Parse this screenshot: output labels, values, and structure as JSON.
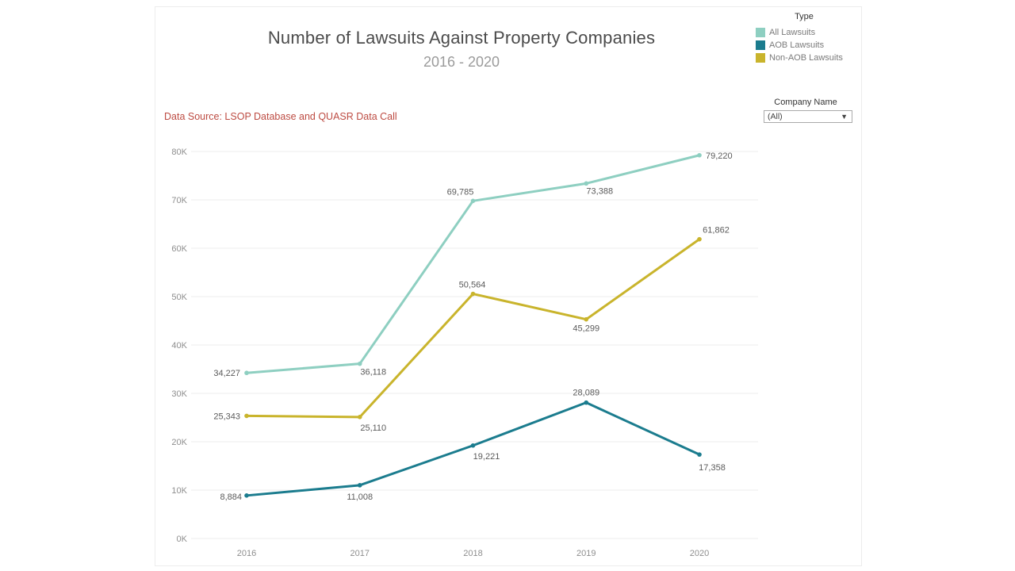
{
  "header": {
    "title": "Number of Lawsuits Against Property Companies",
    "subtitle": "2016 - 2020"
  },
  "data_source": {
    "text": "Data Source: LSOP Database and QUASR Data Call",
    "color": "#bd4b42"
  },
  "legend": {
    "title": "Type",
    "items": [
      {
        "label": "All Lawsuits",
        "color": "#8ecfc1"
      },
      {
        "label": "AOB Lawsuits",
        "color": "#1b7c8e"
      },
      {
        "label": "Non-AOB Lawsuits",
        "color": "#c9b42c"
      }
    ]
  },
  "filter": {
    "label": "Company Name",
    "value": "(All)",
    "icon": "caret-down-icon",
    "caret_glyph": "▼"
  },
  "chart_data": {
    "type": "line",
    "title": "Number of Lawsuits Against Property Companies",
    "subtitle": "2016 - 2020",
    "x": [
      2016,
      2017,
      2018,
      2019,
      2020
    ],
    "xlabel": "",
    "ylabel": "",
    "ylim": [
      0,
      80000
    ],
    "ytick_step": 10000,
    "ytick_labels": [
      "0K",
      "10K",
      "20K",
      "30K",
      "40K",
      "50K",
      "60K",
      "70K",
      "80K"
    ],
    "grid": true,
    "legend_position": "top-right",
    "axis_color": "#8e8e8e",
    "grid_color": "#ededed",
    "label_color": "#5a5a5a",
    "series": [
      {
        "name": "All Lawsuits",
        "color": "#8ecfc1",
        "values": [
          34227,
          36118,
          69785,
          73388,
          79220
        ],
        "labels": [
          "34,227",
          "36,118",
          "69,785",
          "73,388",
          "79,220"
        ],
        "label_offsets": [
          [
            -8,
            4,
            "end"
          ],
          [
            17,
            14,
            "middle"
          ],
          [
            -16,
            -8,
            "middle"
          ],
          [
            17,
            13,
            "middle"
          ],
          [
            8,
            4,
            "start"
          ]
        ]
      },
      {
        "name": "AOB Lawsuits",
        "color": "#1b7c8e",
        "values": [
          8884,
          11008,
          19221,
          28089,
          17358
        ],
        "labels": [
          "8,884",
          "11,008",
          "19,221",
          "28,089",
          "17,358"
        ],
        "label_offsets": [
          [
            -6,
            5,
            "end"
          ],
          [
            0,
            18,
            "middle"
          ],
          [
            17,
            17,
            "middle"
          ],
          [
            0,
            -9,
            "middle"
          ],
          [
            16,
            20,
            "middle"
          ]
        ]
      },
      {
        "name": "Non-AOB Lawsuits",
        "color": "#c9b42c",
        "values": [
          25343,
          25110,
          50564,
          45299,
          61862
        ],
        "labels": [
          "25,343",
          "25,110",
          "50,564",
          "45,299",
          "61,862"
        ],
        "label_offsets": [
          [
            -8,
            4,
            "end"
          ],
          [
            17,
            17,
            "middle"
          ],
          [
            -1,
            -8,
            "middle"
          ],
          [
            0,
            15,
            "middle"
          ],
          [
            21,
            -8,
            "middle"
          ]
        ]
      }
    ]
  }
}
